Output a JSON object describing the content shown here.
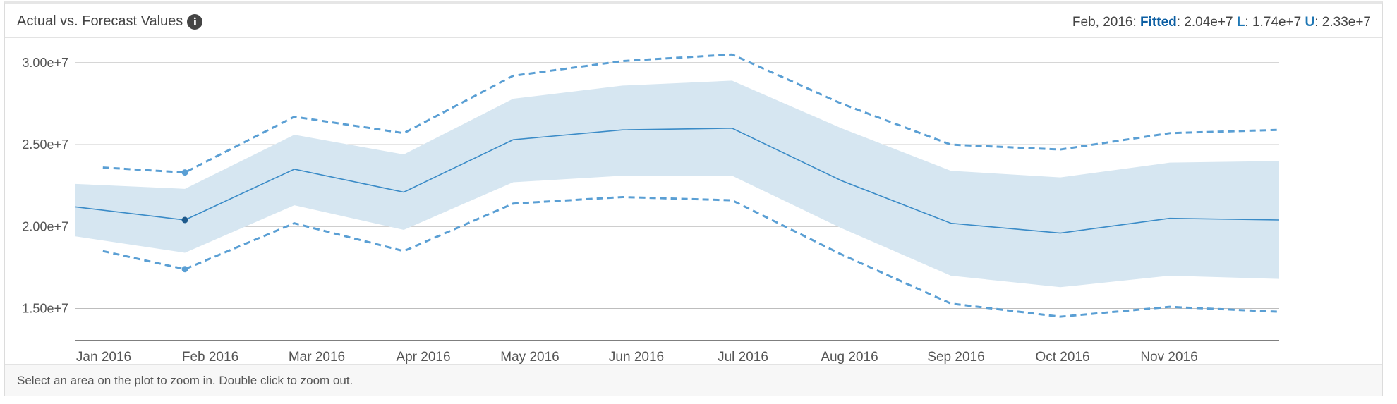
{
  "panel": {
    "title": "Actual vs. Forecast Values",
    "info_icon": "info-icon",
    "readout": {
      "date": "Feb, 2016",
      "fitted_label": "Fitted",
      "fitted_value": "2.04e+7",
      "lower_label": "L",
      "lower_value": "1.74e+7",
      "upper_label": "U",
      "upper_value": "2.33e+7"
    },
    "footer_hint": "Select an area on the plot to zoom in. Double click to zoom out."
  },
  "chart_data": {
    "type": "line",
    "title": "Actual vs. Forecast Values",
    "xlabel": "",
    "ylabel": "",
    "grid": true,
    "ylim": [
      13000000,
      31500000
    ],
    "x_tick_labels": [
      "Jan 2016",
      "Feb 2016",
      "Mar 2016",
      "Apr 2016",
      "May 2016",
      "Jun 2016",
      "Jul 2016",
      "Aug 2016",
      "Sep 2016",
      "Oct 2016",
      "Nov 2016"
    ],
    "y_ticks": [
      15000000,
      20000000,
      25000000,
      30000000
    ],
    "y_tick_labels": [
      "1.50e+7",
      "2.00e+7",
      "2.50e+7",
      "3.00e+7"
    ],
    "x": [
      "2016-01",
      "2016-02",
      "2016-03",
      "2016-04",
      "2016-05",
      "2016-06",
      "2016-07",
      "2016-08",
      "2016-09",
      "2016-10",
      "2016-11",
      "2016-12"
    ],
    "fitted": [
      21200000,
      20400000,
      23500000,
      22100000,
      25300000,
      25900000,
      26000000,
      22800000,
      20200000,
      19600000,
      20500000,
      20400000
    ],
    "band_lower": [
      19400000,
      18400000,
      21300000,
      19800000,
      22700000,
      23100000,
      23100000,
      19900000,
      17000000,
      16300000,
      17000000,
      16800000
    ],
    "band_upper": [
      22600000,
      22300000,
      25600000,
      24400000,
      27800000,
      28600000,
      28900000,
      26000000,
      23400000,
      23000000,
      23900000,
      24000000
    ],
    "lower": [
      18500000,
      17400000,
      20200000,
      18500000,
      21400000,
      21800000,
      21600000,
      18300000,
      15300000,
      14500000,
      15100000,
      14800000
    ],
    "upper": [
      23600000,
      23300000,
      26700000,
      25700000,
      29200000,
      30100000,
      30500000,
      27500000,
      25000000,
      24700000,
      25700000,
      25900000
    ],
    "highlight_x": "2016-02",
    "colors": {
      "fitted": "#3a8bc7",
      "band": "#d6e6f1",
      "bounds": "#5a9fd4",
      "grid": "#bdbdbd",
      "axis": "#555555",
      "tick_text": "#555555"
    }
  }
}
